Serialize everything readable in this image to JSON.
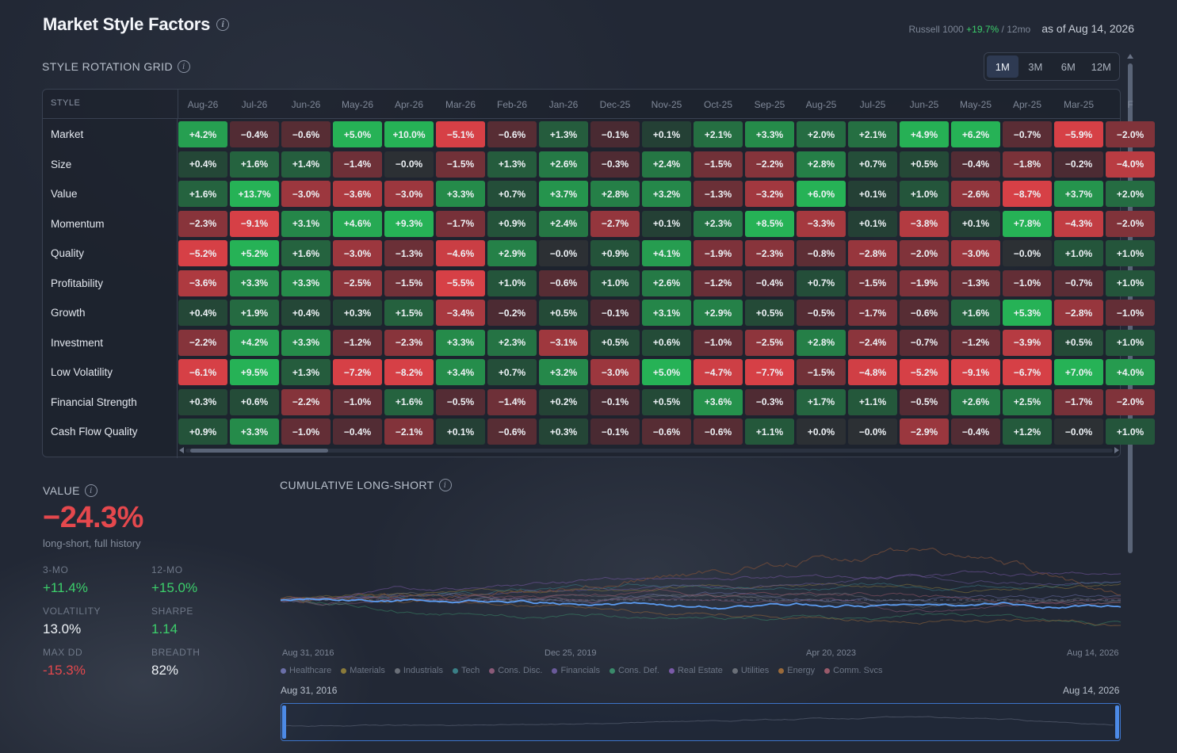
{
  "header": {
    "title": "Market Style Factors",
    "benchmark_label": "Russell 1000",
    "benchmark_return": "+19.7%",
    "benchmark_period": "/ 12mo",
    "as_of": "as of Aug 14, 2026"
  },
  "grid": {
    "section_label": "STYLE ROTATION GRID",
    "style_header": "STYLE",
    "ranges": [
      "1M",
      "3M",
      "6M",
      "12M"
    ],
    "active_range": "1M",
    "months": [
      "Aug-26",
      "Jul-26",
      "Jun-26",
      "May-26",
      "Apr-26",
      "Mar-26",
      "Feb-26",
      "Jan-26",
      "Dec-25",
      "Nov-25",
      "Oct-25",
      "Sep-25",
      "Aug-25",
      "Jul-25",
      "Jun-25",
      "May-25",
      "Apr-25",
      "Mar-25",
      "F"
    ],
    "rows": [
      {
        "name": "Market",
        "values": [
          4.2,
          -0.4,
          -0.6,
          5.0,
          10.0,
          -5.1,
          -0.6,
          1.3,
          -0.1,
          0.1,
          2.1,
          3.3,
          2.0,
          2.1,
          4.9,
          6.2,
          -0.7,
          -5.9,
          -2.0
        ]
      },
      {
        "name": "Size",
        "values": [
          0.4,
          1.6,
          1.4,
          -1.4,
          -0.0,
          -1.5,
          1.3,
          2.6,
          -0.3,
          2.4,
          -1.5,
          -2.2,
          2.8,
          0.7,
          0.5,
          -0.4,
          -1.8,
          -0.2,
          -4.0
        ]
      },
      {
        "name": "Value",
        "values": [
          1.6,
          13.7,
          -3.0,
          -3.6,
          -3.0,
          3.3,
          0.7,
          3.7,
          2.8,
          3.2,
          -1.3,
          -3.2,
          6.0,
          0.1,
          1.0,
          -2.6,
          -8.7,
          3.7,
          2.0
        ]
      },
      {
        "name": "Momentum",
        "values": [
          -2.3,
          -9.1,
          3.1,
          4.6,
          9.3,
          -1.7,
          0.9,
          2.4,
          -2.7,
          0.1,
          2.3,
          8.5,
          -3.3,
          0.1,
          -3.8,
          0.1,
          7.8,
          -4.3,
          -2.0
        ]
      },
      {
        "name": "Quality",
        "values": [
          -5.2,
          5.2,
          1.6,
          -3.0,
          -1.3,
          -4.6,
          2.9,
          -0.0,
          0.9,
          4.1,
          -1.9,
          -2.3,
          -0.8,
          -2.8,
          -2.0,
          -3.0,
          -0.0,
          1.0,
          1.0
        ]
      },
      {
        "name": "Profitability",
        "values": [
          -3.6,
          3.3,
          3.3,
          -2.5,
          -1.5,
          -5.5,
          1.0,
          -0.6,
          1.0,
          2.6,
          -1.2,
          -0.4,
          0.7,
          -1.5,
          -1.9,
          -1.3,
          -1.0,
          -0.7,
          1.0
        ]
      },
      {
        "name": "Growth",
        "values": [
          0.4,
          1.9,
          0.4,
          0.3,
          1.5,
          -3.4,
          -0.2,
          0.5,
          -0.1,
          3.1,
          2.9,
          0.5,
          -0.5,
          -1.7,
          -0.6,
          1.6,
          5.3,
          -2.8,
          -1.0
        ]
      },
      {
        "name": "Investment",
        "values": [
          -2.2,
          4.2,
          3.3,
          -1.2,
          -2.3,
          3.3,
          2.3,
          -3.1,
          0.5,
          0.6,
          -1.0,
          -2.5,
          2.8,
          -2.4,
          -0.7,
          -1.2,
          -3.9,
          0.5,
          1.0
        ]
      },
      {
        "name": "Low Volatility",
        "values": [
          -6.1,
          9.5,
          1.3,
          -7.2,
          -8.2,
          3.4,
          0.7,
          3.2,
          -3.0,
          5.0,
          -4.7,
          -7.7,
          -1.5,
          -4.8,
          -5.2,
          -9.1,
          -6.7,
          7.0,
          4.0
        ]
      },
      {
        "name": "Financial Strength",
        "values": [
          0.3,
          0.6,
          -2.2,
          -1.0,
          1.6,
          -0.5,
          -1.4,
          0.2,
          -0.1,
          0.5,
          3.6,
          -0.3,
          1.7,
          1.1,
          -0.5,
          2.6,
          2.5,
          -1.7,
          -2.0
        ]
      },
      {
        "name": "Cash Flow Quality",
        "values": [
          0.9,
          3.3,
          -1.0,
          -0.4,
          -2.1,
          0.1,
          -0.6,
          0.3,
          -0.1,
          -0.6,
          -0.6,
          1.1,
          0.0,
          -0.0,
          -2.9,
          -0.4,
          1.2,
          -0.0,
          1.0
        ]
      }
    ]
  },
  "stats": {
    "factor_label": "VALUE",
    "headline": "−24.3%",
    "headline_note": "long-short, full history",
    "items": [
      {
        "label": "3-MO",
        "value": "+11.4%",
        "tone": "pos"
      },
      {
        "label": "12-MO",
        "value": "+15.0%",
        "tone": "pos"
      },
      {
        "label": "VOLATILITY",
        "value": "13.0%",
        "tone": "white"
      },
      {
        "label": "SHARPE",
        "value": "1.14",
        "tone": "pos"
      },
      {
        "label": "MAX DD",
        "value": "-15.3%",
        "tone": "neg"
      },
      {
        "label": "BREADTH",
        "value": "82%",
        "tone": "white"
      }
    ]
  },
  "chart": {
    "section_label": "CUMULATIVE LONG-SHORT",
    "x_ticks": [
      "Aug 31, 2016",
      "Dec 25, 2019",
      "Apr 20, 2023",
      "Aug 14, 2026"
    ],
    "legend": [
      {
        "name": "Healthcare",
        "color": "#6b6fa8"
      },
      {
        "name": "Materials",
        "color": "#8a7a3a"
      },
      {
        "name": "Industrials",
        "color": "#6a6f78"
      },
      {
        "name": "Tech",
        "color": "#3a7f86"
      },
      {
        "name": "Cons. Disc.",
        "color": "#8a5a78"
      },
      {
        "name": "Financials",
        "color": "#6a5a9a"
      },
      {
        "name": "Cons. Def.",
        "color": "#3a8a6a"
      },
      {
        "name": "Real Estate",
        "color": "#7a5aa8"
      },
      {
        "name": "Utilities",
        "color": "#6a6f78"
      },
      {
        "name": "Energy",
        "color": "#9a6a3a"
      },
      {
        "name": "Comm. Svcs",
        "color": "#9a5a6a"
      }
    ],
    "brush_start": "Aug 31, 2016",
    "brush_end": "Aug 14, 2026"
  }
}
